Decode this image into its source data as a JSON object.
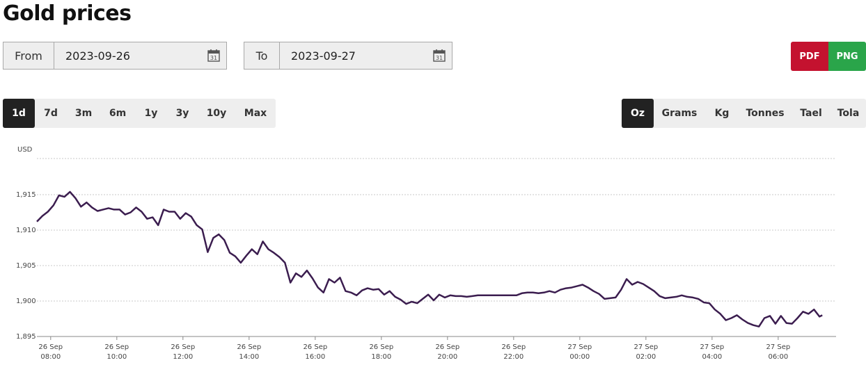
{
  "title": "Gold prices",
  "from": {
    "label": "From",
    "value": "2023-09-26"
  },
  "to": {
    "label": "To",
    "value": "2023-09-27"
  },
  "export": {
    "pdf": "PDF",
    "png": "PNG",
    "pdf_color": "#c4122f",
    "png_color": "#2aa54a"
  },
  "ranges": [
    "1d",
    "7d",
    "3m",
    "6m",
    "1y",
    "3y",
    "10y",
    "Max"
  ],
  "active_range": "1d",
  "units": [
    "Oz",
    "Grams",
    "Kg",
    "Tonnes",
    "Tael",
    "Tola"
  ],
  "active_unit": "Oz",
  "chart_data": {
    "type": "line",
    "ylabel": "USD",
    "ylim": [
      1895,
      1920
    ],
    "y_ticks": [
      1895,
      1900,
      1905,
      1910,
      1915
    ],
    "y_tick_labels": [
      "1,895",
      "1,900",
      "1,905",
      "1,910",
      "1,915"
    ],
    "xlim": [
      "2023-09-26 07:35",
      "2023-09-27 07:45"
    ],
    "x_ticks": [
      {
        "time": "2023-09-26 08:00",
        "day": "26 Sep",
        "hour": "08:00"
      },
      {
        "time": "2023-09-26 10:00",
        "day": "26 Sep",
        "hour": "10:00"
      },
      {
        "time": "2023-09-26 12:00",
        "day": "26 Sep",
        "hour": "12:00"
      },
      {
        "time": "2023-09-26 14:00",
        "day": "26 Sep",
        "hour": "14:00"
      },
      {
        "time": "2023-09-26 16:00",
        "day": "26 Sep",
        "hour": "16:00"
      },
      {
        "time": "2023-09-26 18:00",
        "day": "26 Sep",
        "hour": "18:00"
      },
      {
        "time": "2023-09-26 20:00",
        "day": "26 Sep",
        "hour": "20:00"
      },
      {
        "time": "2023-09-26 22:00",
        "day": "26 Sep",
        "hour": "22:00"
      },
      {
        "time": "2023-09-27 00:00",
        "day": "27 Sep",
        "hour": "00:00"
      },
      {
        "time": "2023-09-27 02:00",
        "day": "27 Sep",
        "hour": "02:00"
      },
      {
        "time": "2023-09-27 04:00",
        "day": "27 Sep",
        "hour": "04:00"
      },
      {
        "time": "2023-09-27 06:00",
        "day": "27 Sep",
        "hour": "06:00"
      }
    ],
    "grid": true,
    "series": [
      {
        "color": "#3b1d4f",
        "points": [
          [
            "2023-09-26 07:35",
            1911.2
          ],
          [
            "2023-09-26 07:45",
            1912.0
          ],
          [
            "2023-09-26 07:55",
            1912.6
          ],
          [
            "2023-09-26 08:05",
            1913.5
          ],
          [
            "2023-09-26 08:15",
            1914.9
          ],
          [
            "2023-09-26 08:25",
            1914.7
          ],
          [
            "2023-09-26 08:35",
            1915.4
          ],
          [
            "2023-09-26 08:45",
            1914.5
          ],
          [
            "2023-09-26 08:55",
            1913.3
          ],
          [
            "2023-09-26 09:05",
            1913.9
          ],
          [
            "2023-09-26 09:15",
            1913.2
          ],
          [
            "2023-09-26 09:25",
            1912.7
          ],
          [
            "2023-09-26 09:35",
            1912.9
          ],
          [
            "2023-09-26 09:45",
            1913.1
          ],
          [
            "2023-09-26 09:55",
            1912.9
          ],
          [
            "2023-09-26 10:05",
            1912.9
          ],
          [
            "2023-09-26 10:15",
            1912.2
          ],
          [
            "2023-09-26 10:25",
            1912.5
          ],
          [
            "2023-09-26 10:35",
            1913.2
          ],
          [
            "2023-09-26 10:45",
            1912.6
          ],
          [
            "2023-09-26 10:55",
            1911.6
          ],
          [
            "2023-09-26 11:05",
            1911.8
          ],
          [
            "2023-09-26 11:15",
            1910.7
          ],
          [
            "2023-09-26 11:25",
            1912.9
          ],
          [
            "2023-09-26 11:35",
            1912.6
          ],
          [
            "2023-09-26 11:45",
            1912.6
          ],
          [
            "2023-09-26 11:55",
            1911.6
          ],
          [
            "2023-09-26 12:05",
            1912.4
          ],
          [
            "2023-09-26 12:15",
            1911.9
          ],
          [
            "2023-09-26 12:25",
            1910.7
          ],
          [
            "2023-09-26 12:35",
            1910.1
          ],
          [
            "2023-09-26 12:45",
            1906.9
          ],
          [
            "2023-09-26 12:55",
            1908.9
          ],
          [
            "2023-09-26 13:05",
            1909.4
          ],
          [
            "2023-09-26 13:15",
            1908.6
          ],
          [
            "2023-09-26 13:25",
            1906.8
          ],
          [
            "2023-09-26 13:35",
            1906.3
          ],
          [
            "2023-09-26 13:45",
            1905.4
          ],
          [
            "2023-09-26 13:55",
            1906.4
          ],
          [
            "2023-09-26 14:05",
            1907.3
          ],
          [
            "2023-09-26 14:15",
            1906.6
          ],
          [
            "2023-09-26 14:25",
            1908.4
          ],
          [
            "2023-09-26 14:35",
            1907.3
          ],
          [
            "2023-09-26 14:45",
            1906.8
          ],
          [
            "2023-09-26 14:55",
            1906.2
          ],
          [
            "2023-09-26 15:05",
            1905.4
          ],
          [
            "2023-09-26 15:15",
            1902.6
          ],
          [
            "2023-09-26 15:25",
            1903.9
          ],
          [
            "2023-09-26 15:35",
            1903.4
          ],
          [
            "2023-09-26 15:45",
            1904.3
          ],
          [
            "2023-09-26 15:55",
            1903.2
          ],
          [
            "2023-09-26 16:05",
            1901.9
          ],
          [
            "2023-09-26 16:15",
            1901.2
          ],
          [
            "2023-09-26 16:25",
            1903.1
          ],
          [
            "2023-09-26 16:35",
            1902.6
          ],
          [
            "2023-09-26 16:45",
            1903.3
          ],
          [
            "2023-09-26 16:55",
            1901.4
          ],
          [
            "2023-09-26 17:05",
            1901.2
          ],
          [
            "2023-09-26 17:15",
            1900.8
          ],
          [
            "2023-09-26 17:25",
            1901.5
          ],
          [
            "2023-09-26 17:35",
            1901.8
          ],
          [
            "2023-09-26 17:45",
            1901.6
          ],
          [
            "2023-09-26 17:55",
            1901.7
          ],
          [
            "2023-09-26 18:05",
            1900.9
          ],
          [
            "2023-09-26 18:15",
            1901.4
          ],
          [
            "2023-09-26 18:25",
            1900.6
          ],
          [
            "2023-09-26 18:35",
            1900.2
          ],
          [
            "2023-09-26 18:45",
            1899.6
          ],
          [
            "2023-09-26 18:55",
            1899.9
          ],
          [
            "2023-09-26 19:05",
            1899.7
          ],
          [
            "2023-09-26 19:15",
            1900.3
          ],
          [
            "2023-09-26 19:25",
            1900.9
          ],
          [
            "2023-09-26 19:35",
            1900.1
          ],
          [
            "2023-09-26 19:45",
            1900.9
          ],
          [
            "2023-09-26 19:55",
            1900.5
          ],
          [
            "2023-09-26 20:05",
            1900.8
          ],
          [
            "2023-09-26 20:15",
            1900.7
          ],
          [
            "2023-09-26 20:25",
            1900.7
          ],
          [
            "2023-09-26 20:35",
            1900.6
          ],
          [
            "2023-09-26 20:45",
            1900.7
          ],
          [
            "2023-09-26 20:55",
            1900.8
          ],
          [
            "2023-09-26 21:15",
            1900.8
          ],
          [
            "2023-09-26 21:35",
            1900.8
          ],
          [
            "2023-09-26 21:55",
            1900.8
          ],
          [
            "2023-09-26 22:05",
            1900.8
          ],
          [
            "2023-09-26 22:15",
            1901.1
          ],
          [
            "2023-09-26 22:25",
            1901.2
          ],
          [
            "2023-09-26 22:35",
            1901.2
          ],
          [
            "2023-09-26 22:45",
            1901.1
          ],
          [
            "2023-09-26 22:55",
            1901.2
          ],
          [
            "2023-09-26 23:05",
            1901.4
          ],
          [
            "2023-09-26 23:15",
            1901.2
          ],
          [
            "2023-09-26 23:25",
            1901.6
          ],
          [
            "2023-09-26 23:35",
            1901.8
          ],
          [
            "2023-09-26 23:45",
            1901.9
          ],
          [
            "2023-09-26 23:55",
            1902.1
          ],
          [
            "2023-09-27 00:05",
            1902.3
          ],
          [
            "2023-09-27 00:15",
            1901.9
          ],
          [
            "2023-09-27 00:25",
            1901.4
          ],
          [
            "2023-09-27 00:35",
            1901.0
          ],
          [
            "2023-09-27 00:45",
            1900.3
          ],
          [
            "2023-09-27 00:55",
            1900.4
          ],
          [
            "2023-09-27 01:05",
            1900.5
          ],
          [
            "2023-09-27 01:15",
            1901.6
          ],
          [
            "2023-09-27 01:25",
            1903.1
          ],
          [
            "2023-09-27 01:35",
            1902.3
          ],
          [
            "2023-09-27 01:45",
            1902.7
          ],
          [
            "2023-09-27 01:55",
            1902.4
          ],
          [
            "2023-09-27 02:05",
            1901.9
          ],
          [
            "2023-09-27 02:15",
            1901.4
          ],
          [
            "2023-09-27 02:25",
            1900.7
          ],
          [
            "2023-09-27 02:35",
            1900.4
          ],
          [
            "2023-09-27 02:45",
            1900.5
          ],
          [
            "2023-09-27 02:55",
            1900.6
          ],
          [
            "2023-09-27 03:05",
            1900.8
          ],
          [
            "2023-09-27 03:15",
            1900.6
          ],
          [
            "2023-09-27 03:25",
            1900.5
          ],
          [
            "2023-09-27 03:35",
            1900.3
          ],
          [
            "2023-09-27 03:45",
            1899.8
          ],
          [
            "2023-09-27 03:55",
            1899.7
          ],
          [
            "2023-09-27 04:05",
            1898.8
          ],
          [
            "2023-09-27 04:15",
            1898.2
          ],
          [
            "2023-09-27 04:25",
            1897.3
          ],
          [
            "2023-09-27 04:35",
            1897.6
          ],
          [
            "2023-09-27 04:45",
            1898.0
          ],
          [
            "2023-09-27 04:55",
            1897.4
          ],
          [
            "2023-09-27 05:05",
            1896.9
          ],
          [
            "2023-09-27 05:15",
            1896.6
          ],
          [
            "2023-09-27 05:25",
            1896.4
          ],
          [
            "2023-09-27 05:35",
            1897.6
          ],
          [
            "2023-09-27 05:45",
            1897.9
          ],
          [
            "2023-09-27 05:55",
            1896.8
          ],
          [
            "2023-09-27 06:05",
            1897.9
          ],
          [
            "2023-09-27 06:15",
            1896.9
          ],
          [
            "2023-09-27 06:25",
            1896.8
          ],
          [
            "2023-09-27 06:35",
            1897.6
          ],
          [
            "2023-09-27 06:45",
            1898.5
          ],
          [
            "2023-09-27 06:55",
            1898.2
          ],
          [
            "2023-09-27 07:05",
            1898.8
          ],
          [
            "2023-09-27 07:15",
            1897.8
          ],
          [
            "2023-09-27 07:20",
            1898.0
          ]
        ]
      }
    ]
  }
}
